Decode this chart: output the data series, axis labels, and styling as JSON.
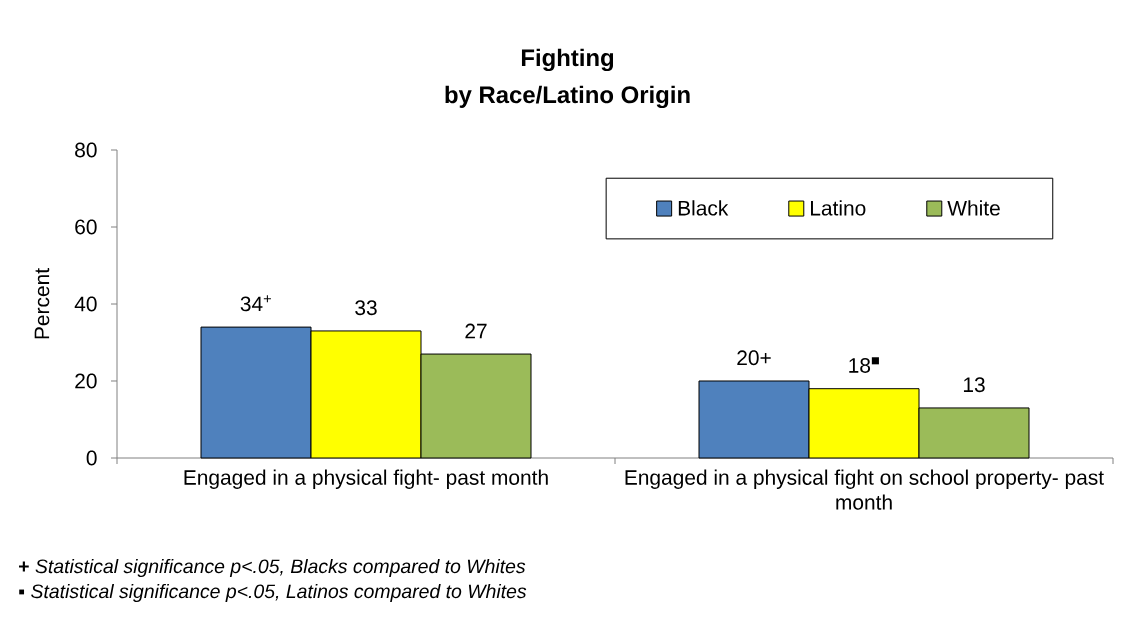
{
  "chart_data": {
    "type": "bar",
    "title": "Fighting",
    "subtitle": "by Race/Latino Origin",
    "ylabel": "Percent",
    "categories": [
      "Engaged in a physical fight- past month",
      "Engaged in a physical fight on school property- past month"
    ],
    "series": [
      {
        "name": "Black",
        "color": "#4f81bd",
        "values": [
          34,
          20
        ],
        "value_labels": [
          "34$^{+}$",
          "20+"
        ]
      },
      {
        "name": "Latino",
        "color": "#ffff00",
        "values": [
          33,
          18
        ],
        "value_labels": [
          "33",
          "18$^{■}$"
        ]
      },
      {
        "name": "White",
        "color": "#9bbb59",
        "values": [
          27,
          13
        ],
        "value_labels": [
          "27",
          "13"
        ]
      }
    ],
    "ylim": [
      0,
      80
    ],
    "yticks": [
      0,
      20,
      40,
      60,
      80
    ],
    "legend": "top right",
    "annotations": [
      "**+** *Statistical significance p<.05, Blacks compared to Whites*",
      "▪ *Statistical significance p<.05, Latinos compared to Whites*"
    ]
  }
}
